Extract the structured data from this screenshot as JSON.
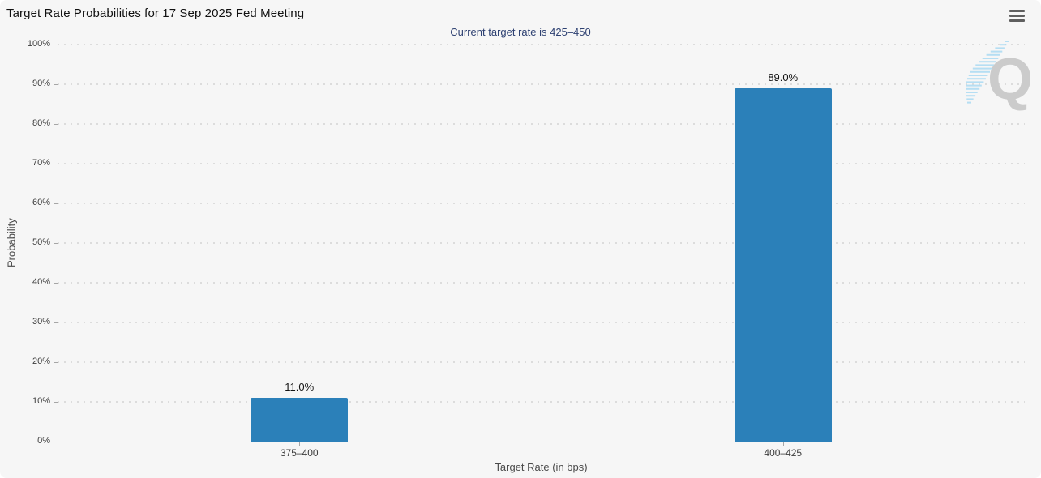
{
  "header": {
    "menu_icon": "hamburger-icon"
  },
  "chart_data": {
    "type": "bar",
    "title": "Target Rate Probabilities for 17 Sep 2025 Fed Meeting",
    "subtitle": "Current target rate is 425–450",
    "categories": [
      "375–400",
      "400–425"
    ],
    "values": [
      11.0,
      89.0
    ],
    "value_labels": [
      "11.0%",
      "89.0%"
    ],
    "xlabel": "Target Rate (in bps)",
    "ylabel": "Probability",
    "ylim": [
      0,
      100
    ],
    "ytick_step": 10,
    "ytick_suffix": "%",
    "grid": "horizontal-dotted",
    "legend": "none",
    "bar_color": "#2b80b9"
  },
  "watermark": {
    "letter": "Q"
  },
  "colors": {
    "background": "#f6f6f6",
    "bar": "#2b80b9",
    "title_text": "#111111",
    "subtitle_text": "#2e4172",
    "axis_text": "#4a4a4a",
    "tick_text": "#3d3d3d",
    "gridline": "#dcdcdc",
    "axis_line": "#a6a6a6",
    "baseline": "#b5b5b5",
    "menu_icon": "#5f5f5f",
    "watermark_gray": "#cbcbcb",
    "watermark_blue": "#a9d9f2"
  }
}
